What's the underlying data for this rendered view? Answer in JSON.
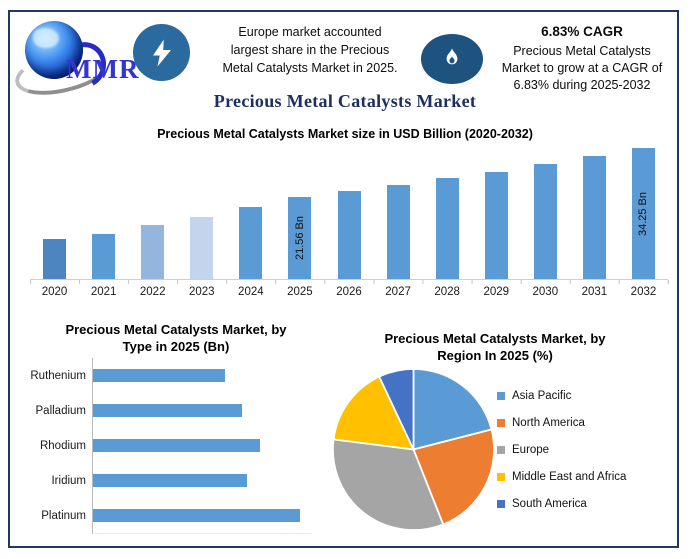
{
  "colors": {
    "frame": "#1f3864",
    "title_navy": "#1b3060",
    "bar_blue": "#5b9bd5",
    "lightning_circle": "#2b6a9e",
    "flame_ellipse": "#1e527f",
    "logo_text_blue": "#3434cf"
  },
  "header": {
    "logo_text": "MMR",
    "logo_icon": "globe-icon",
    "left_badge_icon": "lightning-bolt-icon",
    "left_note_lines": [
      "Europe market accounted",
      "largest share in the Precious",
      "Metal Catalysts Market in 2025."
    ],
    "right_badge_icon": "flame-icon",
    "cagr_headline": "6.83% CAGR",
    "right_note_lines": [
      "Precious Metal Catalysts",
      "Market to grow at a CAGR of",
      "6.83% during 2025-2032"
    ]
  },
  "page_title": "Precious Metal Catalysts Market",
  "chart_data": [
    {
      "type": "bar",
      "title": "Precious Metal Catalysts Market size in USD Billion (2020-2032)",
      "categories": [
        "2020",
        "2021",
        "2022",
        "2023",
        "2024",
        "2025",
        "2026",
        "2027",
        "2028",
        "2029",
        "2030",
        "2031",
        "2032"
      ],
      "values": [
        10.4,
        11.8,
        14.1,
        16.1,
        18.7,
        21.56,
        23.03,
        24.6,
        26.28,
        28.08,
        30.0,
        32.05,
        34.25
      ],
      "bar_labels": [
        "",
        "",
        "",
        "",
        "",
        "21.56 Bn",
        "",
        "",
        "",
        "",
        "",
        "",
        "34.25 Bn"
      ],
      "bar_colors": [
        "#4d86bf",
        "#5b9bd5",
        "#94b5dd",
        "#c3d5ec",
        "#5b9bd5",
        "#5b9bd5",
        "#5b9bd5",
        "#5b9bd5",
        "#5b9bd5",
        "#5b9bd5",
        "#5b9bd5",
        "#5b9bd5",
        "#5b9bd5"
      ],
      "ylabel": "USD Billion",
      "ylim": [
        0,
        36
      ],
      "grid": false,
      "legend": false
    },
    {
      "type": "bar",
      "orientation": "horizontal",
      "title": "Precious Metal Catalysts Market, by Type in 2025 (Bn)",
      "title_lines": [
        "Precious Metal Catalysts Market, by",
        "Type in 2025 (Bn)"
      ],
      "categories": [
        "Ruthenium",
        "Palladium",
        "Rhodium",
        "Iridium",
        "Platinum"
      ],
      "values": [
        3.5,
        3.95,
        4.45,
        4.1,
        5.5
      ],
      "bar_color": "#5b9bd5",
      "xlim": [
        0,
        5.5
      ],
      "grid": false,
      "legend": false
    },
    {
      "type": "pie",
      "title": "Precious Metal Catalysts Market, by Region In 2025 (%)",
      "title_lines": [
        "Precious Metal Catalysts Market, by",
        "Region In 2025 (%)"
      ],
      "labels": [
        "Asia Pacific",
        "North America",
        "Europe",
        "Middle East and Africa",
        "South America"
      ],
      "values": [
        21,
        23,
        33,
        16,
        7
      ],
      "colors": [
        "#5b9bd5",
        "#ed7d31",
        "#a5a5a5",
        "#ffc000",
        "#4472c4"
      ],
      "legend_position": "right",
      "start_angle_deg": 0
    }
  ]
}
